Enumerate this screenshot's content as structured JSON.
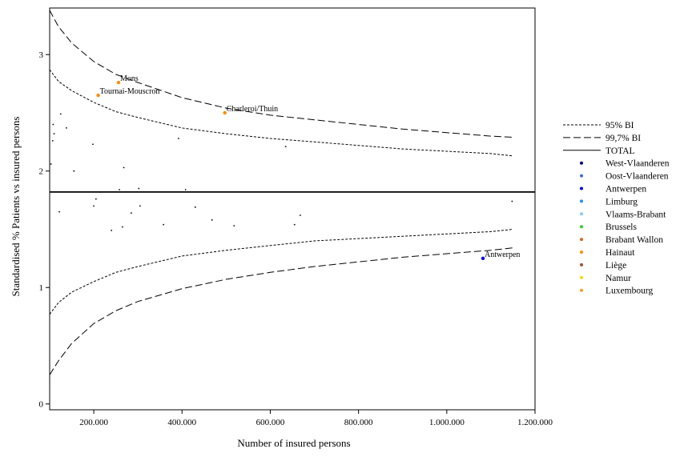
{
  "chart_data": {
    "type": "scatter",
    "xlabel": "Number of insured persons",
    "ylabel": "Standardised % Patients vs insured persons",
    "xlim": [
      100000,
      1200000
    ],
    "ylim": [
      -0.05,
      3.4
    ],
    "x_ticks": [
      {
        "value": 200000,
        "label": "200.000"
      },
      {
        "value": 400000,
        "label": "400.000"
      },
      {
        "value": 600000,
        "label": "600.000"
      },
      {
        "value": 800000,
        "label": "800.000"
      },
      {
        "value": 1000000,
        "label": "1.000.000"
      },
      {
        "value": 1200000,
        "label": "1.200.000"
      }
    ],
    "y_ticks": [
      {
        "value": 0,
        "label": "0"
      },
      {
        "value": 1,
        "label": "1"
      },
      {
        "value": 2,
        "label": "2"
      },
      {
        "value": 3,
        "label": "3"
      }
    ],
    "total": 1.82,
    "ci95": {
      "x": [
        100000,
        120000,
        150000,
        200000,
        250000,
        300000,
        400000,
        500000,
        600000,
        700000,
        800000,
        900000,
        1000000,
        1100000,
        1150000
      ],
      "upper": [
        2.87,
        2.77,
        2.69,
        2.59,
        2.51,
        2.46,
        2.37,
        2.32,
        2.28,
        2.25,
        2.22,
        2.19,
        2.17,
        2.15,
        2.13
      ],
      "lower": [
        0.77,
        0.87,
        0.96,
        1.05,
        1.13,
        1.18,
        1.27,
        1.32,
        1.36,
        1.4,
        1.42,
        1.44,
        1.46,
        1.48,
        1.5
      ]
    },
    "ci997": {
      "x": [
        100000,
        120000,
        150000,
        200000,
        250000,
        300000,
        400000,
        500000,
        600000,
        700000,
        800000,
        900000,
        1000000,
        1100000,
        1150000
      ],
      "upper": [
        3.38,
        3.24,
        3.1,
        2.94,
        2.83,
        2.76,
        2.63,
        2.54,
        2.48,
        2.44,
        2.4,
        2.36,
        2.33,
        2.3,
        2.29
      ],
      "lower": [
        0.25,
        0.37,
        0.52,
        0.69,
        0.8,
        0.88,
        0.99,
        1.07,
        1.13,
        1.18,
        1.22,
        1.26,
        1.29,
        1.32,
        1.34
      ]
    },
    "points": [
      {
        "x": 103000,
        "y": 2.06
      },
      {
        "x": 108000,
        "y": 2.4
      },
      {
        "x": 110000,
        "y": 2.32
      },
      {
        "x": 107000,
        "y": 2.26
      },
      {
        "x": 122000,
        "y": 1.65
      },
      {
        "x": 125000,
        "y": 2.49
      },
      {
        "x": 138000,
        "y": 2.37
      },
      {
        "x": 155000,
        "y": 2.0
      },
      {
        "x": 198000,
        "y": 2.23
      },
      {
        "x": 200000,
        "y": 1.7
      },
      {
        "x": 205000,
        "y": 1.76
      },
      {
        "x": 215000,
        "y": 1.82
      },
      {
        "x": 240000,
        "y": 1.49
      },
      {
        "x": 258000,
        "y": 1.84
      },
      {
        "x": 265000,
        "y": 1.52
      },
      {
        "x": 268000,
        "y": 2.03
      },
      {
        "x": 285000,
        "y": 1.64
      },
      {
        "x": 302000,
        "y": 1.85
      },
      {
        "x": 305000,
        "y": 1.7
      },
      {
        "x": 358000,
        "y": 1.54
      },
      {
        "x": 392000,
        "y": 2.28
      },
      {
        "x": 408000,
        "y": 1.84
      },
      {
        "x": 430000,
        "y": 1.69
      },
      {
        "x": 468000,
        "y": 1.58
      },
      {
        "x": 518000,
        "y": 1.53
      },
      {
        "x": 635000,
        "y": 2.21
      },
      {
        "x": 655000,
        "y": 1.54
      },
      {
        "x": 668000,
        "y": 1.62
      },
      {
        "x": 1148000,
        "y": 1.74
      },
      {
        "x": 210000,
        "y": 2.65,
        "label": "Tournai-Mouscron",
        "province": "Hainaut"
      },
      {
        "x": 256000,
        "y": 2.76,
        "label": "Mons",
        "province": "Hainaut"
      },
      {
        "x": 497000,
        "y": 2.5,
        "label": "Charleroi/Thuin",
        "province": "Hainaut"
      },
      {
        "x": 1082000,
        "y": 1.25,
        "label": "Antwerpen",
        "province": "Antwerpen"
      }
    ],
    "legend": [
      {
        "type": "line",
        "label": "95% BI",
        "dash": "3,2"
      },
      {
        "type": "line",
        "label": "99,7% BI",
        "dash": "9,4"
      },
      {
        "type": "line",
        "label": "TOTAL",
        "dash": ""
      },
      {
        "type": "dot",
        "label": "West-Vlaanderen",
        "color": "#00008b"
      },
      {
        "type": "dot",
        "label": "Oost-Vlaanderen",
        "color": "#4169e1"
      },
      {
        "type": "dot",
        "label": "Antwerpen",
        "color": "#0000ff"
      },
      {
        "type": "dot",
        "label": "Limburg",
        "color": "#1e90ff"
      },
      {
        "type": "dot",
        "label": "Vlaams-Brabant",
        "color": "#87ceeb"
      },
      {
        "type": "dot",
        "label": "Brussels",
        "color": "#32cd32"
      },
      {
        "type": "dot",
        "label": "Brabant Wallon",
        "color": "#d2691e"
      },
      {
        "type": "dot",
        "label": "Hainaut",
        "color": "#ff8c00"
      },
      {
        "type": "dot",
        "label": "Liège",
        "color": "#a0522d"
      },
      {
        "type": "dot",
        "label": "Namur",
        "color": "#ffd700"
      },
      {
        "type": "dot",
        "label": "Luxembourg",
        "color": "#f4a020"
      }
    ],
    "grid": false,
    "legend_position": "right"
  }
}
